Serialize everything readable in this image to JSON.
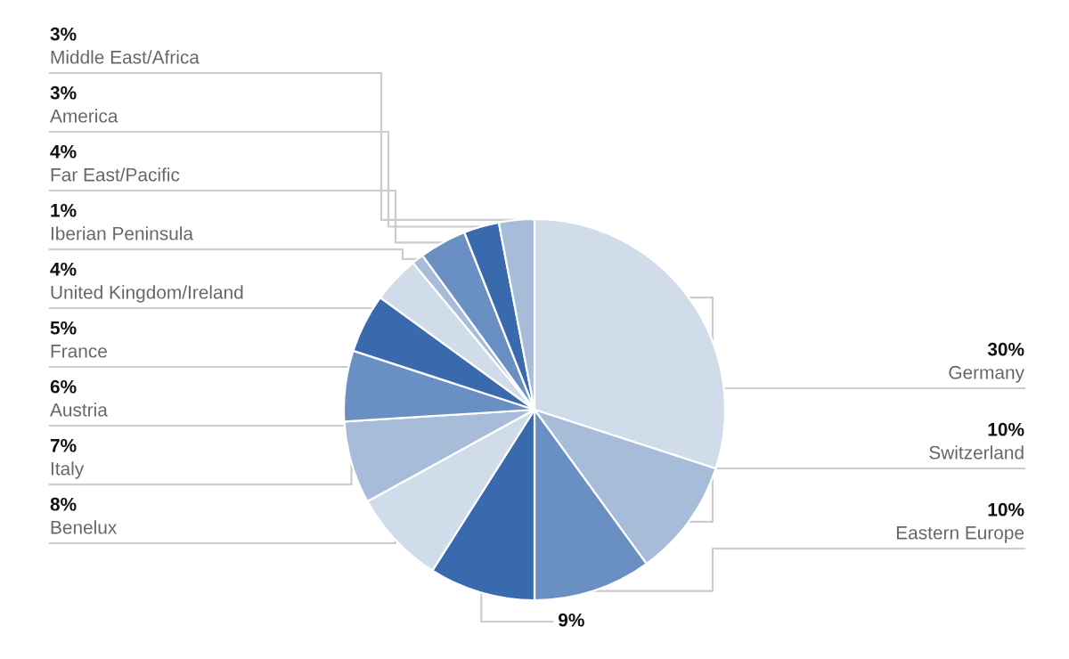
{
  "chart_data": {
    "type": "pie",
    "categories": [
      "Germany",
      "Switzerland",
      "Eastern Europe",
      null,
      "Benelux",
      "Italy",
      "Austria",
      "France",
      "United Kingdom/Ireland",
      "Iberian Peninsula",
      "Far East/Pacific",
      "America",
      "Middle East/Africa"
    ],
    "values": [
      30,
      10,
      10,
      9,
      8,
      7,
      6,
      5,
      4,
      1,
      4,
      3,
      3
    ],
    "value_labels": [
      "30%",
      "10%",
      "10%",
      "9%",
      "8%",
      "7%",
      "6%",
      "5%",
      "4%",
      "1%",
      "4%",
      "3%",
      "3%"
    ],
    "colors": [
      "#d0dcea",
      "#a6bcd8",
      "#6a8fc2",
      "#3a6aae",
      "#d0dcea",
      "#a6bcd8",
      "#6a8fc2",
      "#3a6aae",
      "#d0dcea",
      "#a6bcd8",
      "#6a8fc2",
      "#3a6aae",
      "#a6bcd8"
    ],
    "legend": false
  }
}
